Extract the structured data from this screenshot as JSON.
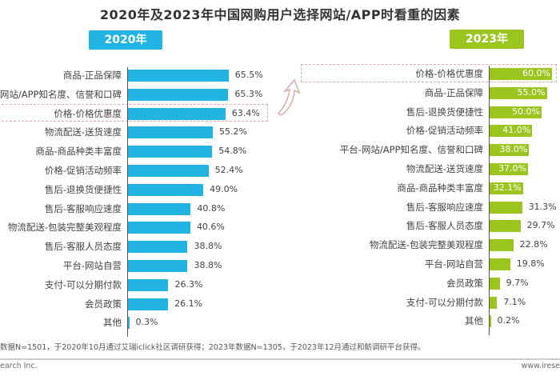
{
  "chart_data": [
    {
      "type": "bar",
      "title": "2020年及2023年中国网购用户选择网站/APP时看重的因素",
      "panel": "2020年",
      "color": "#21b4e3",
      "categories": [
        "商品-正品保障",
        "平台-网站/APP知名度、信誉和口碑",
        "价格-价格优惠度",
        "物流配送-送货速度",
        "商品-商品种类丰富度",
        "价格-促销活动频率",
        "售后-退换货便捷性",
        "售后-客服响应速度",
        "物流配送-包装完整美观程度",
        "售后-客服人员态度",
        "平台-网站自营",
        "支付-可以分期付款",
        "会员政策",
        "其他"
      ],
      "values": [
        65.5,
        65.3,
        63.4,
        55.2,
        54.8,
        52.4,
        49.0,
        40.8,
        40.6,
        38.8,
        38.8,
        26.3,
        26.1,
        0.3
      ],
      "labels": [
        "65.5%",
        "65.3%",
        "63.4%",
        "55.2%",
        "54.8%",
        "52.4%",
        "49.0%",
        "40.8%",
        "40.6%",
        "38.8%",
        "38.8%",
        "26.3%",
        "26.1%",
        "0.3%"
      ]
    },
    {
      "type": "bar",
      "panel": "2023年",
      "color": "#9cc520",
      "categories": [
        "价格-价格优惠度",
        "商品-正品保障",
        "售后-退换货便捷性",
        "价格-促销活动频率",
        "平台-网站/APP知名度、信誉和口碑",
        "物流配送-送货速度",
        "商品-商品种类丰富度",
        "售后-客服响应速度",
        "售后-客服人员态度",
        "物流配送-包装完整美观程度",
        "平台-网站自营",
        "会员政策",
        "支付-可以分期付款",
        "其他"
      ],
      "values": [
        60.0,
        55.0,
        50.0,
        41.0,
        38.0,
        37.0,
        32.1,
        31.3,
        29.7,
        22.8,
        19.8,
        9.7,
        7.1,
        0.2
      ],
      "labels": [
        "60.0%",
        "55.0%",
        "50.0%",
        "41.0%",
        "38.0%",
        "37.0%",
        "32.1%",
        "31.3%",
        "29.7%",
        "22.8%",
        "19.8%",
        "9.7%",
        "7.1%",
        "0.2%"
      ]
    }
  ],
  "footnote": "数据N=1501，于2020年10月通过艾瑞iclick社区调研获得；2023年数据N=1305，于2023年12月通过和鲂调研平台获得。",
  "bottom_left": "earch Inc.",
  "bottom_right": "www.irese"
}
